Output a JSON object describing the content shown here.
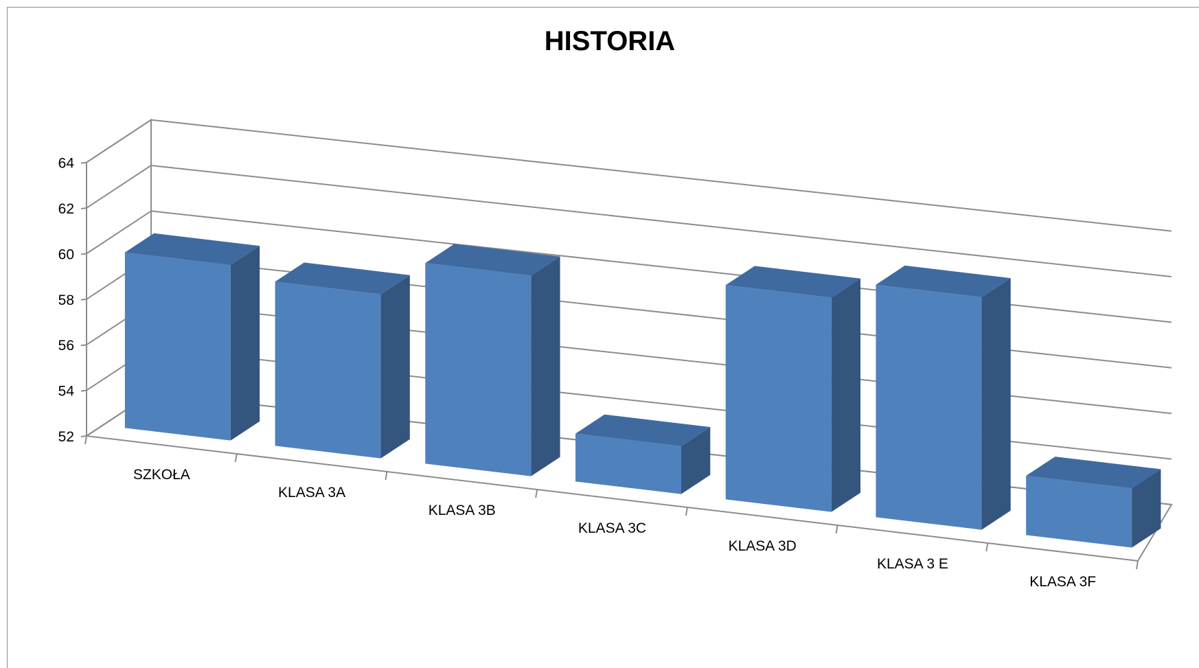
{
  "chart_data": {
    "type": "bar",
    "title": "HISTORIA",
    "xlabel": "",
    "ylabel": "",
    "categories": [
      "SZKOŁA",
      "KLASA 3A",
      "KLASA 3B",
      "KLASA 3C",
      "KLASA 3D",
      "KLASA 3 E",
      "KLASA 3F"
    ],
    "values": [
      59.7,
      59.2,
      60.8,
      54.1,
      61.4,
      62.2,
      54.6
    ],
    "ylim": [
      52,
      64
    ],
    "yticks": [
      52,
      54,
      56,
      58,
      60,
      62,
      64
    ],
    "grid": true,
    "legend": "none",
    "style": "3d-column",
    "colors": {
      "bar_front": "#4f81bd",
      "bar_side": "#34557e",
      "bar_top": "#3f6aa0",
      "gridline": "#8c8c8c"
    }
  }
}
